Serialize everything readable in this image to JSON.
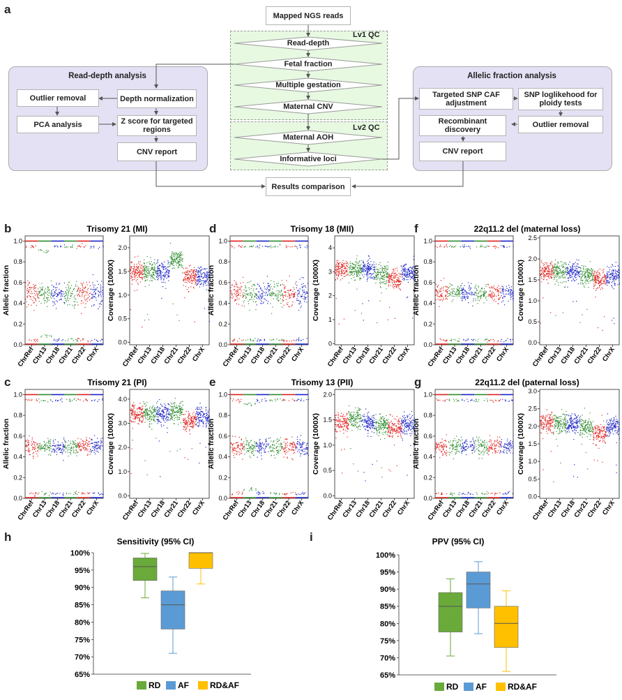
{
  "figure": {
    "panel_labels": {
      "a": "a",
      "b": "b",
      "c": "c",
      "d": "d",
      "e": "e",
      "f": "f",
      "g": "g",
      "h": "h",
      "i": "i"
    },
    "flowchart": {
      "top": "Mapped NGS reads",
      "lv1_label": "Lv1 QC",
      "lv2_label": "Lv2 QC",
      "center_steps": [
        "Read-depth",
        "Fetal fraction",
        "Multiple gestation",
        "Maternal CNV",
        "Maternal AOH",
        "Informative loci"
      ],
      "read_depth_title": "Read-depth analysis",
      "read_depth_boxes": {
        "outlier_removal": "Outlier removal",
        "depth_normalization": "Depth normalization",
        "pca": "PCA analysis",
        "zscore": "Z score for targeted regions",
        "cnv_report": "CNV report"
      },
      "allelic_title": "Allelic fraction analysis",
      "allelic_boxes": {
        "targeted_snp": "Targeted SNP CAF adjustment",
        "snp_loglik": "SNP loglikehood for ploidy tests",
        "recombinant": "Recombinant discovery",
        "outlier_removal": "Outlier removal",
        "cnv_report": "CNV report"
      },
      "results": "Results comparison"
    },
    "scatter_panels": [
      {
        "letter": "b",
        "title": "Trisomy 21 (MI)"
      },
      {
        "letter": "d",
        "title": "Trisomy 18 (MII)"
      },
      {
        "letter": "f",
        "title": "22q11.2 del (maternal loss)"
      },
      {
        "letter": "c",
        "title": "Trisomy 21 (PI)"
      },
      {
        "letter": "e",
        "title": "Trisomy 13 (PII)"
      },
      {
        "letter": "g",
        "title": "22q11.2 del (paternal loss)"
      }
    ],
    "allelic_ylabel": "Allelic fraction",
    "coverage_ylabel": "Coverage (1000X)",
    "chrom_ticks": [
      "ChrRef",
      "Chr13",
      "Chr18",
      "Chr21",
      "Chr22",
      "ChrX"
    ],
    "colors": {
      "green": "#2e8b2e",
      "red": "#e0201c",
      "blue": "#1c24c8",
      "rd": "#6aaa3a",
      "af": "#5b9bd5",
      "rdaf": "#ffc000"
    }
  },
  "chart_data": [
    {
      "type": "scatter",
      "title": "Trisomy 21 (MI)",
      "ylabel": "Allelic fraction",
      "yticks": [
        "0.0",
        "0.2",
        "0.4",
        "0.6",
        "0.8",
        "1.0"
      ],
      "ylim": [
        0,
        1.05
      ],
      "categories": [
        "ChrRef",
        "Chr13",
        "Chr18",
        "Chr21",
        "Chr22",
        "ChrX"
      ]
    },
    {
      "type": "scatter",
      "title": "Trisomy 21 (MI)",
      "ylabel": "Coverage (1000X)",
      "yticks": [
        "0.0",
        "0.5",
        "1.0",
        "1.5",
        "2.0"
      ],
      "ylim": [
        -0.05,
        2.25
      ],
      "categories": [
        "ChrRef",
        "Chr13",
        "Chr18",
        "Chr21",
        "Chr22",
        "ChrX"
      ],
      "means": [
        1.5,
        1.5,
        1.5,
        1.75,
        1.4,
        1.4
      ]
    },
    {
      "type": "scatter",
      "title": "Trisomy 18 (MII)",
      "ylabel": "Allelic fraction",
      "yticks": [
        "0.0",
        "0.2",
        "0.4",
        "0.6",
        "0.8",
        "1.0"
      ],
      "ylim": [
        0,
        1.05
      ],
      "categories": [
        "ChrRef",
        "Chr13",
        "Chr18",
        "Chr21",
        "Chr22",
        "ChrX"
      ]
    },
    {
      "type": "scatter",
      "title": "Trisomy 18 (MII)",
      "ylabel": "Coverage (1000X)",
      "yticks": [
        "0",
        "1",
        "2",
        "3",
        "4"
      ],
      "ylim": [
        -0.05,
        4.5
      ],
      "categories": [
        "ChrRef",
        "Chr13",
        "Chr18",
        "Chr21",
        "Chr22",
        "ChrX"
      ],
      "means": [
        3.1,
        3.1,
        3.1,
        2.9,
        2.7,
        3.0
      ]
    },
    {
      "type": "scatter",
      "title": "22q11.2 del (maternal loss)",
      "ylabel": "Allelic fraction",
      "yticks": [
        "0.0",
        "0.2",
        "0.4",
        "0.6",
        "0.8",
        "1.0"
      ],
      "ylim": [
        0,
        1.05
      ],
      "categories": [
        "ChrRef",
        "Chr13",
        "Chr18",
        "Chr21",
        "Chr22",
        "ChrX"
      ]
    },
    {
      "type": "scatter",
      "title": "22q11.2 del (maternal loss)",
      "ylabel": "Coverage (1000X)",
      "yticks": [
        "0.0",
        "0.5",
        "1.0",
        "1.5",
        "2.0",
        "2.5"
      ],
      "ylim": [
        -0.05,
        2.55
      ],
      "categories": [
        "ChrRef",
        "Chr13",
        "Chr18",
        "Chr21",
        "Chr22",
        "ChrX"
      ],
      "means": [
        1.7,
        1.7,
        1.7,
        1.6,
        1.5,
        1.6
      ]
    },
    {
      "type": "scatter",
      "title": "Trisomy 21 (PI)",
      "ylabel": "Allelic fraction",
      "yticks": [
        "0.0",
        "0.2",
        "0.4",
        "0.6",
        "0.8",
        "1.0"
      ],
      "ylim": [
        0,
        1.05
      ],
      "categories": [
        "ChrRef",
        "Chr13",
        "Chr18",
        "Chr21",
        "Chr22",
        "ChrX"
      ]
    },
    {
      "type": "scatter",
      "title": "Trisomy 21 (PI)",
      "ylabel": "Coverage (1000X)",
      "yticks": [
        "0.0",
        "1.0",
        "2.0",
        "3.0",
        "4.0"
      ],
      "ylim": [
        -0.1,
        4.4
      ],
      "categories": [
        "ChrRef",
        "Chr13",
        "Chr18",
        "Chr21",
        "Chr22",
        "ChrX"
      ],
      "means": [
        3.4,
        3.4,
        3.4,
        3.5,
        3.1,
        3.3
      ]
    },
    {
      "type": "scatter",
      "title": "Trisomy 13 (PII)",
      "ylabel": "Allelic fraction",
      "yticks": [
        "0.0",
        "0.2",
        "0.4",
        "0.6",
        "0.8",
        "1.0"
      ],
      "ylim": [
        0,
        1.05
      ],
      "categories": [
        "ChrRef",
        "Chr13",
        "Chr18",
        "Chr21",
        "Chr22",
        "ChrX"
      ]
    },
    {
      "type": "scatter",
      "title": "Trisomy 13 (PII)",
      "ylabel": "Coverage (1000X)",
      "yticks": [
        "0.0",
        "0.5",
        "1.0",
        "1.5",
        "2.0"
      ],
      "ylim": [
        -0.05,
        2.1
      ],
      "categories": [
        "ChrRef",
        "Chr13",
        "Chr18",
        "Chr21",
        "Chr22",
        "ChrX"
      ],
      "means": [
        1.45,
        1.55,
        1.45,
        1.4,
        1.35,
        1.4
      ]
    },
    {
      "type": "scatter",
      "title": "22q11.2 del (paternal loss)",
      "ylabel": "Allelic fraction",
      "yticks": [
        "0.0",
        "0.2",
        "0.4",
        "0.6",
        "0.8",
        "1.0"
      ],
      "ylim": [
        0,
        1.05
      ],
      "categories": [
        "ChrRef",
        "Chr13",
        "Chr18",
        "Chr21",
        "Chr22",
        "ChrX"
      ]
    },
    {
      "type": "scatter",
      "title": "22q11.2 del (paternal loss)",
      "ylabel": "Coverage (1000X)",
      "yticks": [
        "0.0",
        "0.5",
        "1.0",
        "1.5",
        "2.0",
        "2.5",
        "3.0"
      ],
      "ylim": [
        -0.05,
        3.05
      ],
      "categories": [
        "ChrRef",
        "Chr13",
        "Chr18",
        "Chr21",
        "Chr22",
        "ChrX"
      ],
      "means": [
        2.1,
        2.1,
        2.1,
        2.0,
        1.8,
        2.0
      ]
    },
    {
      "type": "box",
      "title": "Sensitivity (95% CI)",
      "ylim": [
        65,
        100
      ],
      "yticks": [
        "65%",
        "70%",
        "75%",
        "80%",
        "85%",
        "90%",
        "95%",
        "100%"
      ],
      "series": [
        {
          "name": "RD",
          "whisker_low": 87,
          "q1": 92,
          "median": 96,
          "q3": 98.5,
          "whisker_high": 99.8
        },
        {
          "name": "AF",
          "whisker_low": 71,
          "q1": 78,
          "median": 85,
          "q3": 89,
          "whisker_high": 93
        },
        {
          "name": "RD&AF",
          "whisker_low": 91,
          "q1": 95.5,
          "median": 100,
          "q3": 100,
          "whisker_high": 100
        }
      ],
      "legend": [
        "RD",
        "AF",
        "RD&AF"
      ]
    },
    {
      "type": "box",
      "title": "PPV (95% CI)",
      "ylim": [
        65,
        100
      ],
      "yticks": [
        "65%",
        "70%",
        "75%",
        "80%",
        "85%",
        "90%",
        "95%",
        "100%"
      ],
      "series": [
        {
          "name": "RD",
          "whisker_low": 70.5,
          "q1": 77.5,
          "median": 85,
          "q3": 89,
          "whisker_high": 93
        },
        {
          "name": "AF",
          "whisker_low": 77,
          "q1": 84.5,
          "median": 91.5,
          "q3": 95,
          "whisker_high": 98
        },
        {
          "name": "RD&AF",
          "whisker_low": 66,
          "q1": 73,
          "median": 80,
          "q3": 85,
          "whisker_high": 89.5
        }
      ],
      "legend": [
        "RD",
        "AF",
        "RD&AF"
      ]
    }
  ]
}
